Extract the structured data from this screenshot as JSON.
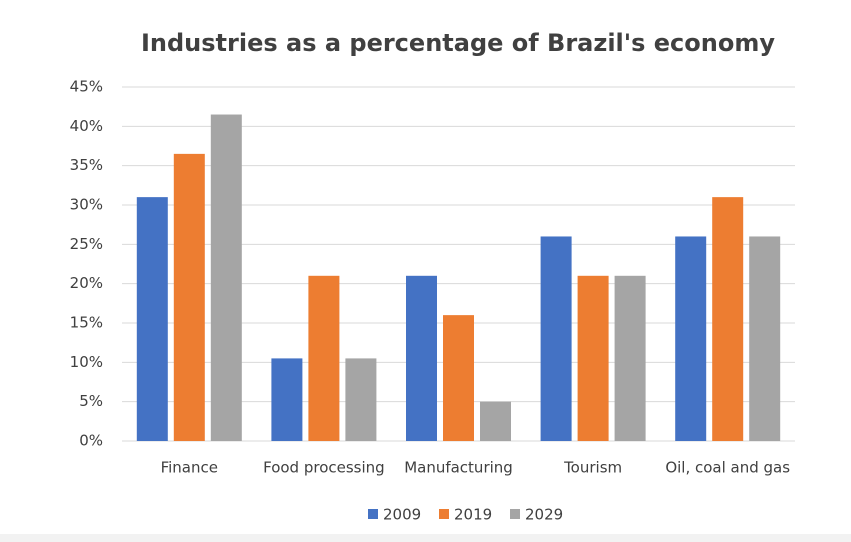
{
  "chart_data": {
    "type": "bar",
    "title": "Industries as a percentage of Brazil's economy",
    "categories": [
      "Finance",
      "Food processing",
      "Manufacturing",
      "Tourism",
      "Oil, coal and gas"
    ],
    "series": [
      {
        "name": "2009",
        "color": "#4472c4",
        "values": [
          31,
          10.5,
          21,
          26,
          26
        ]
      },
      {
        "name": "2019",
        "color": "#ed7d31",
        "values": [
          36.5,
          21,
          16,
          21,
          31
        ]
      },
      {
        "name": "2029",
        "color": "#a5a5a5",
        "values": [
          41.5,
          10.5,
          5,
          21,
          26
        ]
      }
    ],
    "ylim": [
      0,
      45
    ],
    "yticks": [
      {
        "value": 0,
        "label": "0%"
      },
      {
        "value": 5,
        "label": "5%"
      },
      {
        "value": 10,
        "label": "10%"
      },
      {
        "value": 15,
        "label": "15%"
      },
      {
        "value": 20,
        "label": "20%"
      },
      {
        "value": 25,
        "label": "25%"
      },
      {
        "value": 30,
        "label": "30%"
      },
      {
        "value": 35,
        "label": "35%"
      },
      {
        "value": 40,
        "label": "40%"
      },
      {
        "value": 45,
        "label": "45%"
      }
    ],
    "grid": true,
    "legend": "bottom"
  }
}
